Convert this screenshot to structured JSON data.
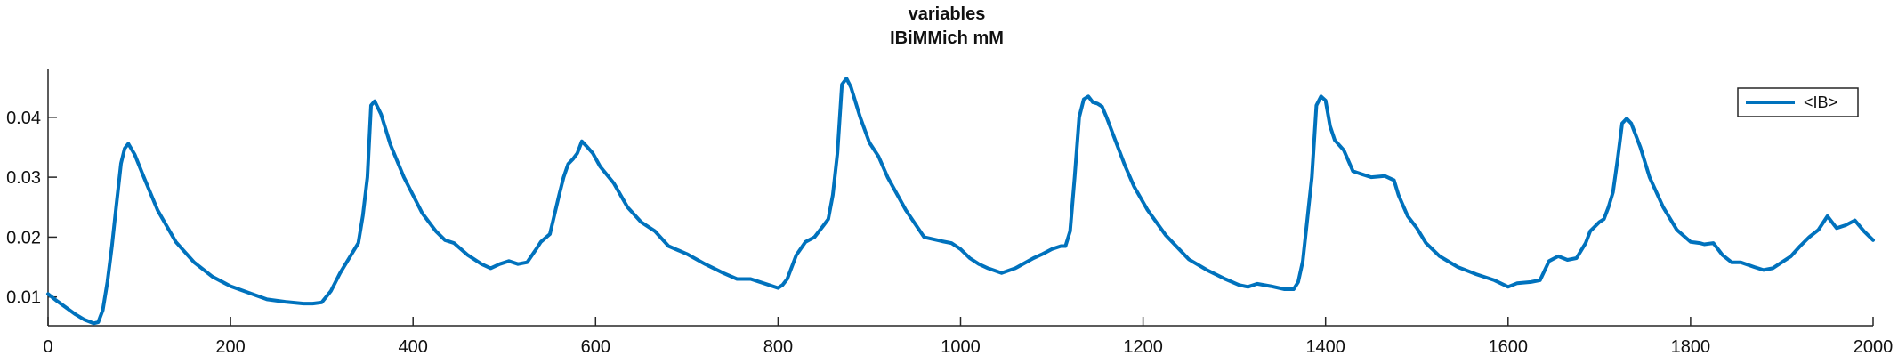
{
  "chart_data": {
    "type": "line",
    "title": [
      "variables",
      "IBiMMich mM"
    ],
    "xlabel": "",
    "ylabel": "",
    "xlim": [
      0,
      2000
    ],
    "ylim": [
      0.0052,
      0.048
    ],
    "xticks": [
      0,
      200,
      400,
      600,
      800,
      1000,
      1200,
      1400,
      1600,
      1800,
      2000
    ],
    "xtick_labels": [
      "0",
      "200",
      "400",
      "600",
      "800",
      "1000",
      "1200",
      "1400",
      "1600",
      "1800",
      "2000"
    ],
    "yticks": [
      0.01,
      0.02,
      0.03,
      0.04
    ],
    "ytick_labels": [
      "0.01",
      "0.02",
      "0.03",
      "0.04"
    ],
    "grid": false,
    "legend": {
      "position": "top-right",
      "entries": [
        "<IB>"
      ]
    },
    "series": [
      {
        "name": "<IB>",
        "color": "#0072BD",
        "x": [
          0,
          10,
          20,
          30,
          40,
          50,
          55,
          60,
          65,
          70,
          75,
          80,
          84,
          88,
          95,
          105,
          120,
          140,
          160,
          180,
          200,
          220,
          240,
          260,
          280,
          290,
          300,
          310,
          320,
          330,
          340,
          345,
          350,
          354,
          358,
          365,
          375,
          390,
          410,
          425,
          435,
          445,
          460,
          475,
          485,
          495,
          505,
          515,
          525,
          535,
          540,
          550,
          560,
          565,
          570,
          575,
          580,
          585,
          590,
          597,
          605,
          620,
          635,
          650,
          665,
          680,
          700,
          720,
          740,
          755,
          770,
          790,
          800,
          805,
          810,
          820,
          830,
          840,
          850,
          855,
          860,
          865,
          870,
          875,
          880,
          890,
          900,
          910,
          920,
          940,
          960,
          980,
          990,
          1000,
          1010,
          1020,
          1030,
          1045,
          1060,
          1080,
          1090,
          1100,
          1110,
          1115,
          1120,
          1125,
          1130,
          1135,
          1140,
          1145,
          1150,
          1155,
          1160,
          1170,
          1180,
          1190,
          1205,
          1225,
          1250,
          1270,
          1290,
          1305,
          1315,
          1325,
          1340,
          1355,
          1365,
          1370,
          1375,
          1380,
          1385,
          1390,
          1395,
          1400,
          1405,
          1410,
          1420,
          1430,
          1440,
          1450,
          1465,
          1475,
          1480,
          1490,
          1500,
          1510,
          1525,
          1545,
          1565,
          1585,
          1600,
          1610,
          1625,
          1635,
          1645,
          1655,
          1665,
          1675,
          1685,
          1690,
          1700,
          1705,
          1710,
          1715,
          1720,
          1725,
          1730,
          1735,
          1745,
          1755,
          1770,
          1785,
          1800,
          1810,
          1815,
          1825,
          1835,
          1845,
          1855,
          1870,
          1880,
          1890,
          1900,
          1910,
          1920,
          1930,
          1940,
          1950,
          1960,
          1970,
          1980,
          1990,
          2000
        ],
        "y": [
          0.0105,
          0.0093,
          0.0082,
          0.0071,
          0.0062,
          0.0056,
          0.0058,
          0.0078,
          0.0125,
          0.0185,
          0.0255,
          0.0323,
          0.0348,
          0.0356,
          0.0338,
          0.03,
          0.0245,
          0.0192,
          0.0158,
          0.0134,
          0.0118,
          0.0107,
          0.0096,
          0.0092,
          0.0089,
          0.0089,
          0.0091,
          0.011,
          0.014,
          0.0165,
          0.019,
          0.0236,
          0.03,
          0.042,
          0.0427,
          0.0405,
          0.0355,
          0.03,
          0.024,
          0.021,
          0.0195,
          0.019,
          0.017,
          0.0155,
          0.0148,
          0.0155,
          0.016,
          0.0155,
          0.0158,
          0.018,
          0.0192,
          0.0205,
          0.027,
          0.03,
          0.0322,
          0.033,
          0.034,
          0.036,
          0.0352,
          0.034,
          0.0318,
          0.029,
          0.025,
          0.0225,
          0.021,
          0.0185,
          0.0172,
          0.0155,
          0.014,
          0.013,
          0.013,
          0.012,
          0.0115,
          0.012,
          0.013,
          0.017,
          0.0192,
          0.02,
          0.022,
          0.023,
          0.027,
          0.034,
          0.0455,
          0.0465,
          0.045,
          0.04,
          0.0358,
          0.0335,
          0.03,
          0.0245,
          0.02,
          0.0193,
          0.019,
          0.018,
          0.0165,
          0.0155,
          0.0148,
          0.014,
          0.0148,
          0.0165,
          0.0172,
          0.018,
          0.0185,
          0.0185,
          0.021,
          0.03,
          0.04,
          0.043,
          0.0435,
          0.0425,
          0.0423,
          0.0418,
          0.04,
          0.036,
          0.032,
          0.0285,
          0.0245,
          0.0203,
          0.0163,
          0.0145,
          0.013,
          0.012,
          0.0117,
          0.0122,
          0.0118,
          0.0113,
          0.0113,
          0.0125,
          0.016,
          0.023,
          0.03,
          0.042,
          0.0435,
          0.0428,
          0.0385,
          0.0362,
          0.0345,
          0.031,
          0.0305,
          0.03,
          0.0302,
          0.0295,
          0.027,
          0.0235,
          0.0215,
          0.019,
          0.0168,
          0.015,
          0.0138,
          0.0128,
          0.0117,
          0.0123,
          0.0125,
          0.0128,
          0.016,
          0.0168,
          0.0162,
          0.0165,
          0.019,
          0.021,
          0.0225,
          0.023,
          0.025,
          0.0275,
          0.033,
          0.039,
          0.0398,
          0.039,
          0.035,
          0.03,
          0.025,
          0.0212,
          0.0192,
          0.019,
          0.0188,
          0.019,
          0.017,
          0.0158,
          0.0158,
          0.015,
          0.0145,
          0.0148,
          0.0158,
          0.0168,
          0.0185,
          0.02,
          0.0212,
          0.0235,
          0.0215,
          0.022,
          0.0228,
          0.021,
          0.0195
        ]
      }
    ]
  }
}
